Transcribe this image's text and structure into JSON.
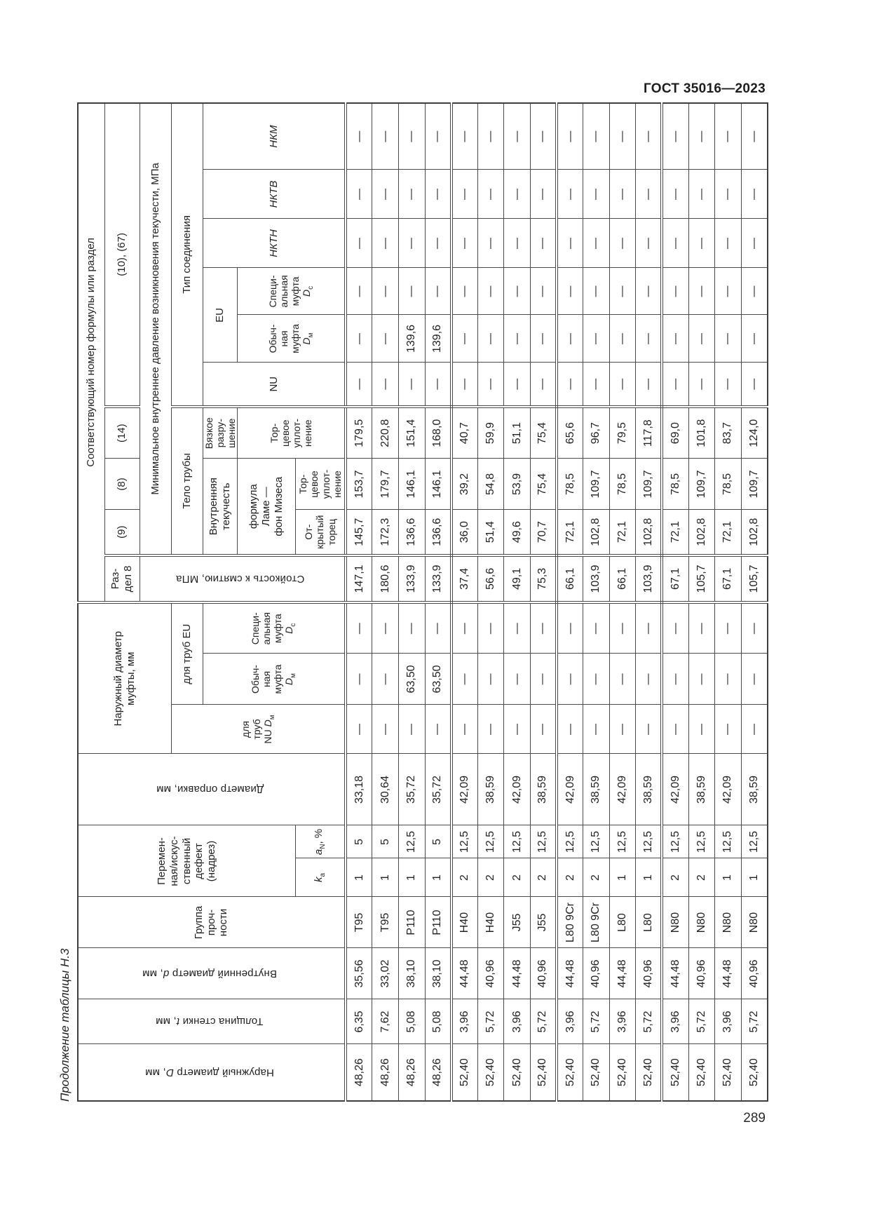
{
  "page": {
    "doc_header": "ГОСТ 35016—2023",
    "page_number": "289",
    "table_caption": "Продолжение таблицы Н.3"
  },
  "table": {
    "headers": {
      "outer_diameter": "Наружный диаметр <i>D</i>, мм",
      "wall_thickness": "Толщина стенки <i>t</i>, мм",
      "inner_diameter": "Внутренний диаметр <i>d</i>, мм",
      "strength_group": "Группа<br>проч-<br>ности",
      "defect_group": "Перемен-<br>ная/искус-<br>ственный<br>дефект<br>(надрез)",
      "k_a": "<i>k</i><sub>а</sub>",
      "a_n": "<i>a</i><sub>N</sub>, %",
      "mandrel_diameter": "Диаметр оправки, мм",
      "coupling_group": "Наружный диаметр<br>муфты, мм",
      "nu_pipes": "для<br>труб<br>NU <i>D</i><sub>м</sub>",
      "eu_pipes": "для труб EU",
      "regular_coupling_d": "Обыч-<br>ная<br>муфта<br><i>D</i><sub>м</sub>",
      "special_coupling_d": "Специ-<br>альная<br>муфта<br><i>D</i><sub>с</sub>",
      "formula_ref": "Соответствующий номер формулы или раздел",
      "section8": "Раз-<br>дел 8",
      "f9": "(9)",
      "f8": "(8)",
      "f14": "(14)",
      "f10_67": "(10), (67)",
      "collapse_resistance": "Стойкость к смятию, МПа",
      "min_pressure": "Минимальное внутреннее давление возникновения текучести, МПа",
      "pipe_body": "Тело трубы",
      "connection_type": "Тип соединения",
      "internal_yield": "Внутренняя<br>текучесть",
      "viscous_failure": "Вязкое<br>разру-<br>шение",
      "lame_mises": "формула<br>Ламе —<br>фон Мизеса",
      "open_end": "От-<br>крытый<br>торец",
      "end_seal": "Тор-<br>цевое<br>уплот-<br>нение",
      "end_seal_viscous": "Тор-<br>цевое<br>уплот-<br>нение",
      "nu": "NU",
      "eu": "EU",
      "nktn": "НКТН",
      "nktv": "НКТВ",
      "nkm": "НКМ"
    },
    "rows": [
      [
        "48,26",
        "6,35",
        "35,56",
        "T95",
        "1",
        "5",
        "33,18",
        "—",
        "—",
        "—",
        "147,1",
        "145,7",
        "153,7",
        "179,5",
        "—",
        "—",
        "—",
        "—",
        "—",
        "—"
      ],
      [
        "48,26",
        "7,62",
        "33,02",
        "T95",
        "1",
        "5",
        "30,64",
        "—",
        "—",
        "—",
        "180,6",
        "172,3",
        "179,7",
        "220,8",
        "—",
        "—",
        "—",
        "—",
        "—",
        "—"
      ],
      [
        "48,26",
        "5,08",
        "38,10",
        "P110",
        "1",
        "12,5",
        "35,72",
        "—",
        "63,50",
        "—",
        "133,9",
        "136,6",
        "146,1",
        "151,4",
        "—",
        "139,6",
        "—",
        "—",
        "—",
        "—"
      ],
      [
        "48,26",
        "5,08",
        "38,10",
        "P110",
        "1",
        "5",
        "35,72",
        "—",
        "63,50",
        "—",
        "133,9",
        "136,6",
        "146,1",
        "168,0",
        "—",
        "139,6",
        "—",
        "—",
        "—",
        "—"
      ],
      [
        "52,40",
        "3,96",
        "44,48",
        "H40",
        "2",
        "12,5",
        "42,09",
        "—",
        "—",
        "—",
        "37,4",
        "36,0",
        "39,2",
        "40,7",
        "—",
        "—",
        "—",
        "—",
        "—",
        "—"
      ],
      [
        "52,40",
        "5,72",
        "40,96",
        "H40",
        "2",
        "12,5",
        "38,59",
        "—",
        "—",
        "—",
        "56,6",
        "51,4",
        "54,8",
        "59,9",
        "—",
        "—",
        "—",
        "—",
        "—",
        "—"
      ],
      [
        "52,40",
        "3,96",
        "44,48",
        "J55",
        "2",
        "12,5",
        "42,09",
        "—",
        "—",
        "—",
        "49,1",
        "49,6",
        "53,9",
        "51,1",
        "—",
        "—",
        "—",
        "—",
        "—",
        "—"
      ],
      [
        "52,40",
        "5,72",
        "40,96",
        "J55",
        "2",
        "12,5",
        "38,59",
        "—",
        "—",
        "—",
        "75,3",
        "70,7",
        "75,4",
        "75,4",
        "—",
        "—",
        "—",
        "—",
        "—",
        "—"
      ],
      [
        "52,40",
        "3,96",
        "44,48",
        "L80 9Cr",
        "2",
        "12,5",
        "42,09",
        "—",
        "—",
        "—",
        "66,1",
        "72,1",
        "78,5",
        "65,6",
        "—",
        "—",
        "—",
        "—",
        "—",
        "—"
      ],
      [
        "52,40",
        "5,72",
        "40,96",
        "L80 9Cr",
        "2",
        "12,5",
        "38,59",
        "—",
        "—",
        "—",
        "103,9",
        "102,8",
        "109,7",
        "96,7",
        "—",
        "—",
        "—",
        "—",
        "—",
        "—"
      ],
      [
        "52,40",
        "3,96",
        "44,48",
        "L80",
        "1",
        "12,5",
        "42,09",
        "—",
        "—",
        "—",
        "66,1",
        "72,1",
        "78,5",
        "79,5",
        "—",
        "—",
        "—",
        "—",
        "—",
        "—"
      ],
      [
        "52,40",
        "5,72",
        "40,96",
        "L80",
        "1",
        "12,5",
        "38,59",
        "—",
        "—",
        "—",
        "103,9",
        "102,8",
        "109,7",
        "117,8",
        "—",
        "—",
        "—",
        "—",
        "—",
        "—"
      ],
      [
        "52,40",
        "3,96",
        "44,48",
        "N80",
        "2",
        "12,5",
        "42,09",
        "—",
        "—",
        "—",
        "67,1",
        "72,1",
        "78,5",
        "69,0",
        "—",
        "—",
        "—",
        "—",
        "—",
        "—"
      ],
      [
        "52,40",
        "5,72",
        "40,96",
        "N80",
        "2",
        "12,5",
        "38,59",
        "—",
        "—",
        "—",
        "105,7",
        "102,8",
        "109,7",
        "101,8",
        "—",
        "—",
        "—",
        "—",
        "—",
        "—"
      ],
      [
        "52,40",
        "3,96",
        "44,48",
        "N80",
        "1",
        "12,5",
        "42,09",
        "—",
        "—",
        "—",
        "67,1",
        "72,1",
        "78,5",
        "83,7",
        "—",
        "—",
        "—",
        "—",
        "—",
        "—"
      ],
      [
        "52,40",
        "5,72",
        "40,96",
        "N80",
        "1",
        "12,5",
        "38,59",
        "—",
        "—",
        "—",
        "105,7",
        "102,8",
        "109,7",
        "124,0",
        "—",
        "—",
        "—",
        "—",
        "—",
        "—"
      ]
    ]
  }
}
